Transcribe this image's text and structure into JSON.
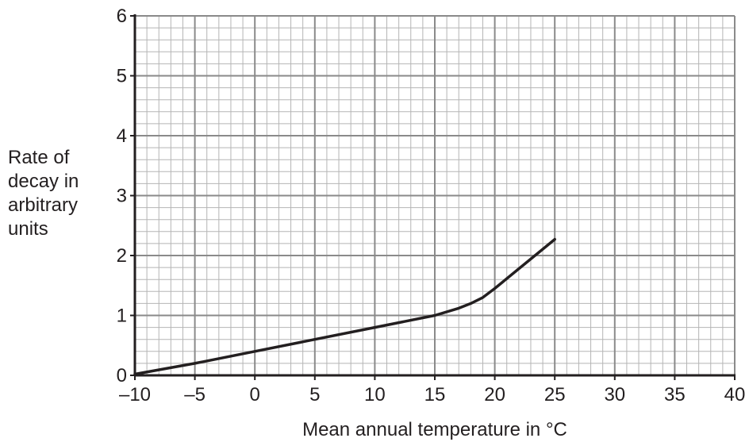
{
  "chart_data": {
    "type": "line",
    "title": "",
    "xlabel": "Mean annual temperature in °C",
    "ylabel_lines": [
      "Rate of",
      "decay in",
      "arbitrary",
      "units"
    ],
    "xlim": [
      -10,
      40
    ],
    "ylim": [
      0,
      6
    ],
    "x_ticks": [
      -10,
      -5,
      0,
      5,
      10,
      15,
      20,
      25,
      30,
      35,
      40
    ],
    "x_tick_labels": [
      "–10",
      "–5",
      "0",
      "5",
      "10",
      "15",
      "20",
      "25",
      "30",
      "35",
      "40"
    ],
    "y_ticks": [
      0,
      1,
      2,
      3,
      4,
      5,
      6
    ],
    "y_tick_labels": [
      "0",
      "1",
      "2",
      "3",
      "4",
      "5",
      "6"
    ],
    "grid": true,
    "minor_grid_per_major_x": 5,
    "minor_grid_per_major_y": 5,
    "series": [
      {
        "x": [
          -10,
          -5,
          0,
          5,
          10,
          15,
          17,
          18,
          19,
          20,
          25
        ],
        "values": [
          0.02,
          0.2,
          0.4,
          0.6,
          0.8,
          1.0,
          1.12,
          1.2,
          1.3,
          1.45,
          2.27
        ]
      }
    ],
    "colors": {
      "line": "#231f20",
      "grid_major": "#8a8a8a",
      "grid_minor": "#b5b5b5",
      "axis": "#231f20"
    }
  }
}
